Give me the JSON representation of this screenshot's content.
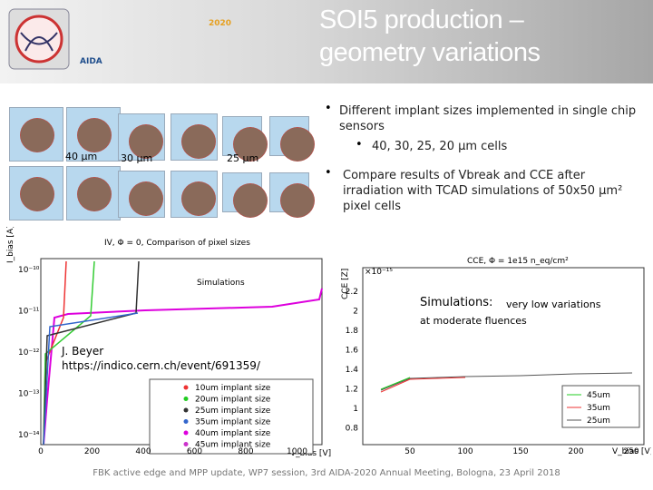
{
  "header": {
    "logo_text": "AIDA",
    "logo_year": "2020",
    "title": [
      "SOI5 production –",
      "geometry variations"
    ]
  },
  "pixel_labels": [
    "40 μm",
    "30 μm",
    "25 μm"
  ],
  "bullets": [
    {
      "text": "Different implant sizes implemented in single chip sensors",
      "sub": [
        "40, 30, 25, 20 μm cells"
      ]
    },
    {
      "text": "Compare results of Vbreak and CCE after irradiation with TCAD simulations of 50x50 μm² pixel cells"
    }
  ],
  "left_plot": {
    "title": "IV, Φ = 0, Comparison of pixel sizes",
    "y_label": "I_bias [A]",
    "x_label": "V_bias [V]",
    "yticks": [
      "10⁻¹⁰",
      "10⁻¹¹",
      "10⁻¹²",
      "10⁻¹³",
      "10⁻¹⁴"
    ],
    "xticks": [
      "0",
      "200",
      "400",
      "600",
      "800",
      "1000"
    ],
    "legend": [
      "10um implant size",
      "20um implant size",
      "25um implant size",
      "35um implant size",
      "40um implant size",
      "45um implant size"
    ],
    "annotation": "Simulations"
  },
  "credit": {
    "author": "J. Beyer",
    "link": "https://indico.cern.ch/event/691359/"
  },
  "right_plot": {
    "title": "CCE, Φ = 1e15 n_eq/cm²",
    "y_label": "CCE [Z]",
    "x_label": "V_bias [V]",
    "scale": "×10⁻¹⁵",
    "yticks": [
      "2.2",
      "2",
      "1.8",
      "1.6",
      "1.4",
      "1.2",
      "1",
      "0.8"
    ],
    "xticks": [
      "50",
      "100",
      "150",
      "200",
      "250"
    ],
    "legend": [
      "45um",
      "35um",
      "25um"
    ],
    "annotation": [
      "Simulations:",
      "very low variations",
      "at moderate fluences"
    ]
  },
  "footer": "FBK active edge and MPP update, WP7 session, 3rd AIDA-2020 Annual Meeting, Bologna, 23 April 2018"
}
